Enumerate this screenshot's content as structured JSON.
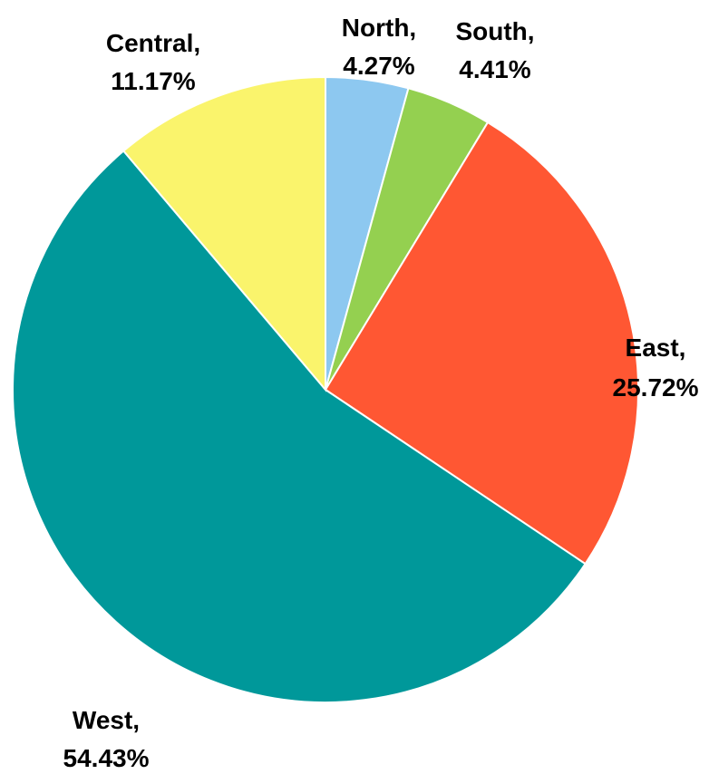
{
  "chart_data": {
    "type": "pie",
    "title": "",
    "legend": "none",
    "start_angle_deg": 0,
    "direction": "clockwise",
    "slices": [
      {
        "name": "North",
        "value": 4.27,
        "label_name": "North,",
        "label_value": "4.27%",
        "color": "#8DC8F0"
      },
      {
        "name": "South",
        "value": 4.41,
        "label_name": "South,",
        "label_value": "4.41%",
        "color": "#94D050"
      },
      {
        "name": "East",
        "value": 25.72,
        "label_name": "East,",
        "label_value": "25.72%",
        "color": "#FF5733"
      },
      {
        "name": "West",
        "value": 54.43,
        "label_name": "West,",
        "label_value": "54.43%",
        "color": "#00989A"
      },
      {
        "name": "Central",
        "value": 11.17,
        "label_name": "Central,",
        "label_value": "11.17%",
        "color": "#FAF46C"
      }
    ]
  }
}
